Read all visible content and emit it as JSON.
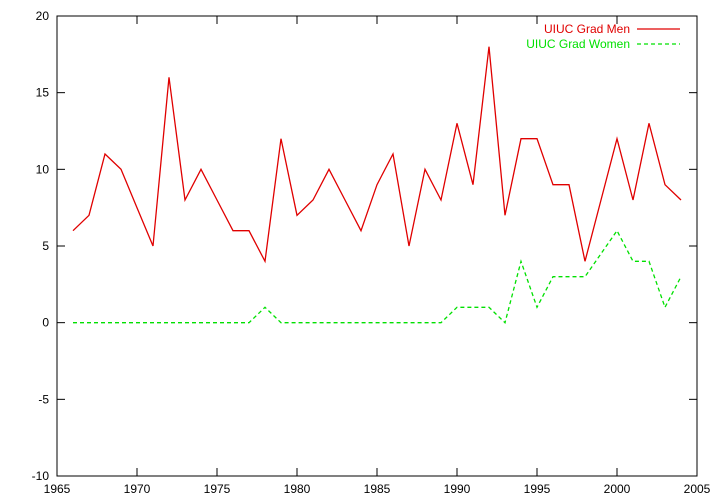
{
  "chart_data": {
    "type": "line",
    "title": "",
    "xlabel": "",
    "ylabel": "",
    "xlim": [
      1965,
      2005
    ],
    "ylim": [
      -10,
      20
    ],
    "xticks": [
      1965,
      1970,
      1975,
      1980,
      1985,
      1990,
      1995,
      2000,
      2005
    ],
    "yticks": [
      -10,
      -5,
      0,
      5,
      10,
      15,
      20
    ],
    "grid": false,
    "legend_position": "top-right",
    "x": [
      1966,
      1967,
      1968,
      1969,
      1970,
      1971,
      1972,
      1973,
      1974,
      1975,
      1976,
      1977,
      1978,
      1979,
      1980,
      1981,
      1982,
      1983,
      1984,
      1985,
      1986,
      1987,
      1988,
      1989,
      1990,
      1991,
      1992,
      1993,
      1994,
      1995,
      1996,
      1997,
      1998,
      1999,
      2000,
      2001,
      2002,
      2003,
      2004
    ],
    "series": [
      {
        "name": "UIUC Grad Men",
        "color": "#e00000",
        "dash": "solid",
        "values": [
          6,
          7,
          11,
          10,
          7.5,
          5,
          16,
          8,
          10,
          8,
          6,
          6,
          4,
          12,
          7,
          8,
          10,
          8,
          6,
          9,
          11,
          5,
          10,
          8,
          13,
          9,
          18,
          7,
          12,
          12,
          9,
          9,
          4,
          8,
          12,
          8,
          13,
          9,
          8
        ]
      },
      {
        "name": "UIUC Grad Women",
        "color": "#00e000",
        "dash": "dashed",
        "values": [
          0,
          0,
          0,
          0,
          0,
          0,
          0,
          0,
          0,
          0,
          0,
          0,
          1,
          0,
          0,
          0,
          0,
          0,
          0,
          0,
          0,
          0,
          0,
          0,
          1,
          1,
          1,
          0,
          4,
          1,
          3,
          3,
          3,
          4.5,
          6,
          4,
          4,
          1,
          3
        ]
      }
    ]
  }
}
